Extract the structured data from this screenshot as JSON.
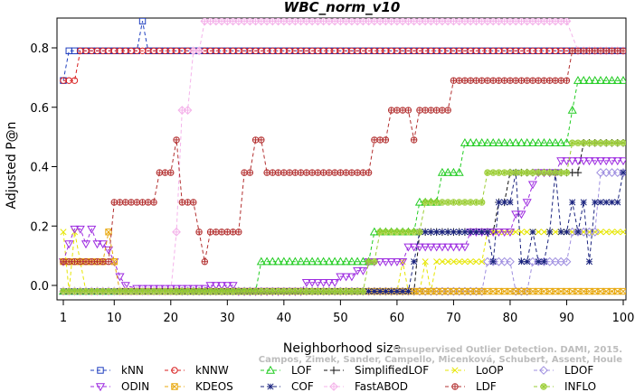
{
  "chart_data": {
    "type": "line",
    "title": "WBC_norm_v10",
    "xlabel": "Neighborhood size",
    "ylabel": "Adjusted P@n",
    "xlim": [
      1,
      100
    ],
    "ylim": [
      -0.03,
      0.9
    ],
    "x_ticks": [
      1,
      10,
      20,
      30,
      40,
      50,
      60,
      70,
      80,
      90,
      100
    ],
    "y_ticks": [
      0.0,
      0.2,
      0.4,
      0.6,
      0.8
    ],
    "y_tick_labels": [
      "0.0",
      "0.2",
      "0.4",
      "0.6",
      "0.8"
    ],
    "legend_position": "bottom",
    "watermark": [
      "Campos, Zimek, Sander, Campello, Micenková, Schubert, Assent, Houle",
      "Unsupervised Outlier Detection. DAMI, 2015."
    ],
    "series": [
      {
        "name": "kNN",
        "color": "#1f3fbf",
        "marker": "square",
        "points": [
          [
            1,
            0.69
          ],
          [
            2,
            0.79
          ],
          [
            14,
            0.79
          ],
          [
            15,
            0.89
          ],
          [
            16,
            0.79
          ],
          [
            100,
            0.79
          ]
        ]
      },
      {
        "name": "kNNW",
        "color": "#d81e1e",
        "marker": "circle",
        "points": [
          [
            1,
            0.69
          ],
          [
            3,
            0.69
          ],
          [
            4,
            0.79
          ],
          [
            100,
            0.79
          ]
        ]
      },
      {
        "name": "LOF",
        "color": "#22cc22",
        "marker": "triangle-up",
        "points": [
          [
            1,
            -0.02
          ],
          [
            35,
            -0.02
          ],
          [
            36,
            0.08
          ],
          [
            55,
            0.08
          ],
          [
            56,
            0.18
          ],
          [
            63,
            0.18
          ],
          [
            64,
            0.28
          ],
          [
            67,
            0.28
          ],
          [
            68,
            0.38
          ],
          [
            71,
            0.38
          ],
          [
            72,
            0.48
          ],
          [
            90,
            0.48
          ],
          [
            91,
            0.59
          ],
          [
            92,
            0.69
          ],
          [
            100,
            0.69
          ]
        ]
      },
      {
        "name": "SimplifiedLOF",
        "color": "#111111",
        "marker": "plus",
        "points": [
          [
            1,
            -0.02
          ],
          [
            63,
            -0.02
          ],
          [
            64,
            0.18
          ],
          [
            77,
            0.18
          ],
          [
            78,
            0.28
          ],
          [
            79,
            0.28
          ],
          [
            80,
            0.38
          ],
          [
            92,
            0.38
          ],
          [
            93,
            0.48
          ],
          [
            99,
            0.48
          ],
          [
            100,
            0.48
          ]
        ]
      },
      {
        "name": "LoOP",
        "color": "#e6e600",
        "marker": "x",
        "points": [
          [
            1,
            0.18
          ],
          [
            2,
            -0.02
          ],
          [
            3,
            0.18
          ],
          [
            4,
            0.08
          ],
          [
            5,
            -0.02
          ],
          [
            60,
            -0.02
          ],
          [
            61,
            0.08
          ],
          [
            62,
            -0.02
          ],
          [
            64,
            -0.02
          ],
          [
            65,
            0.08
          ],
          [
            66,
            -0.02
          ],
          [
            67,
            0.08
          ],
          [
            75,
            0.08
          ],
          [
            76,
            0.18
          ],
          [
            100,
            0.18
          ]
        ]
      },
      {
        "name": "LDOF",
        "color": "#9f8fe0",
        "marker": "diamond",
        "points": [
          [
            1,
            -0.02
          ],
          [
            75,
            -0.02
          ],
          [
            76,
            0.08
          ],
          [
            80,
            0.08
          ],
          [
            81,
            -0.02
          ],
          [
            83,
            -0.02
          ],
          [
            84,
            0.08
          ],
          [
            90,
            0.08
          ],
          [
            91,
            0.18
          ],
          [
            95,
            0.18
          ],
          [
            96,
            0.38
          ],
          [
            100,
            0.38
          ]
        ]
      },
      {
        "name": "ODIN",
        "color": "#9d2be0",
        "marker": "triangle-down",
        "points": [
          [
            1,
            0.08
          ],
          [
            2,
            0.14
          ],
          [
            3,
            0.19
          ],
          [
            4,
            0.19
          ],
          [
            5,
            0.14
          ],
          [
            6,
            0.19
          ],
          [
            7,
            0.14
          ],
          [
            8,
            0.14
          ],
          [
            9,
            0.12
          ],
          [
            10,
            0.08
          ],
          [
            11,
            0.03
          ],
          [
            12,
            0.0
          ],
          [
            14,
            -0.01
          ],
          [
            26,
            -0.01
          ],
          [
            27,
            0.0
          ],
          [
            31,
            0.0
          ],
          [
            32,
            -0.02
          ],
          [
            43,
            -0.02
          ],
          [
            44,
            0.01
          ],
          [
            49,
            0.01
          ],
          [
            50,
            0.03
          ],
          [
            52,
            0.03
          ],
          [
            53,
            0.05
          ],
          [
            54,
            0.05
          ],
          [
            55,
            0.08
          ],
          [
            61,
            0.08
          ],
          [
            62,
            0.13
          ],
          [
            72,
            0.13
          ],
          [
            73,
            0.18
          ],
          [
            80,
            0.18
          ],
          [
            81,
            0.24
          ],
          [
            82,
            0.24
          ],
          [
            83,
            0.28
          ],
          [
            84,
            0.34
          ],
          [
            85,
            0.38
          ],
          [
            88,
            0.38
          ],
          [
            89,
            0.42
          ],
          [
            100,
            0.42
          ]
        ]
      },
      {
        "name": "KDEOS",
        "color": "#e8a80e",
        "marker": "square-x",
        "points": [
          [
            1,
            0.08
          ],
          [
            8,
            0.08
          ],
          [
            9,
            0.18
          ],
          [
            10,
            0.08
          ],
          [
            11,
            -0.02
          ],
          [
            100,
            -0.02
          ]
        ]
      },
      {
        "name": "COF",
        "color": "#1a237e",
        "marker": "star",
        "points": [
          [
            1,
            -0.02
          ],
          [
            62,
            -0.02
          ],
          [
            63,
            0.08
          ],
          [
            64,
            0.18
          ],
          [
            76,
            0.18
          ],
          [
            77,
            0.08
          ],
          [
            78,
            0.28
          ],
          [
            80,
            0.28
          ],
          [
            81,
            0.38
          ],
          [
            82,
            0.08
          ],
          [
            83,
            0.08
          ],
          [
            84,
            0.18
          ],
          [
            85,
            0.08
          ],
          [
            86,
            0.08
          ],
          [
            87,
            0.18
          ],
          [
            88,
            0.38
          ],
          [
            89,
            0.18
          ],
          [
            90,
            0.18
          ],
          [
            91,
            0.28
          ],
          [
            92,
            0.18
          ],
          [
            93,
            0.28
          ],
          [
            94,
            0.08
          ],
          [
            95,
            0.28
          ],
          [
            99,
            0.28
          ],
          [
            100,
            0.38
          ]
        ]
      },
      {
        "name": "FastABOD",
        "color": "#f4b3ea",
        "marker": "diamond-plus",
        "points": [
          [
            1,
            -0.02
          ],
          [
            20,
            -0.02
          ],
          [
            21,
            0.18
          ],
          [
            22,
            0.59
          ],
          [
            23,
            0.59
          ],
          [
            24,
            0.79
          ],
          [
            25,
            0.79
          ],
          [
            26,
            0.89
          ],
          [
            34,
            0.89
          ],
          [
            40,
            0.89
          ],
          [
            50,
            0.89
          ],
          [
            55,
            0.89
          ],
          [
            58,
            0.89
          ],
          [
            60,
            0.89
          ],
          [
            70,
            0.89
          ],
          [
            74,
            0.89
          ],
          [
            75,
            0.89
          ],
          [
            80,
            0.89
          ],
          [
            84,
            0.89
          ],
          [
            85,
            0.89
          ],
          [
            90,
            0.89
          ],
          [
            92,
            0.79
          ],
          [
            100,
            0.79
          ]
        ]
      },
      {
        "name": "LDF",
        "color": "#b33030",
        "marker": "circle-plus",
        "points": [
          [
            1,
            0.08
          ],
          [
            9,
            0.08
          ],
          [
            10,
            0.28
          ],
          [
            15,
            0.28
          ],
          [
            16,
            0.28
          ],
          [
            17,
            0.28
          ],
          [
            18,
            0.38
          ],
          [
            20,
            0.38
          ],
          [
            21,
            0.49
          ],
          [
            22,
            0.28
          ],
          [
            24,
            0.28
          ],
          [
            25,
            0.18
          ],
          [
            26,
            0.08
          ],
          [
            27,
            0.18
          ],
          [
            32,
            0.18
          ],
          [
            33,
            0.38
          ],
          [
            34,
            0.38
          ],
          [
            35,
            0.49
          ],
          [
            36,
            0.49
          ],
          [
            37,
            0.38
          ],
          [
            55,
            0.38
          ],
          [
            56,
            0.49
          ],
          [
            58,
            0.49
          ],
          [
            59,
            0.59
          ],
          [
            62,
            0.59
          ],
          [
            63,
            0.49
          ],
          [
            64,
            0.59
          ],
          [
            69,
            0.59
          ],
          [
            70,
            0.69
          ],
          [
            90,
            0.69
          ],
          [
            91,
            0.79
          ],
          [
            100,
            0.79
          ]
        ]
      },
      {
        "name": "INFLO",
        "color": "#9acd32",
        "marker": "star-circle",
        "points": [
          [
            1,
            -0.02
          ],
          [
            54,
            -0.02
          ],
          [
            55,
            0.08
          ],
          [
            56,
            0.08
          ],
          [
            57,
            0.18
          ],
          [
            64,
            0.18
          ],
          [
            65,
            0.28
          ],
          [
            75,
            0.28
          ],
          [
            76,
            0.38
          ],
          [
            90,
            0.38
          ],
          [
            91,
            0.48
          ],
          [
            100,
            0.48
          ]
        ]
      }
    ]
  }
}
